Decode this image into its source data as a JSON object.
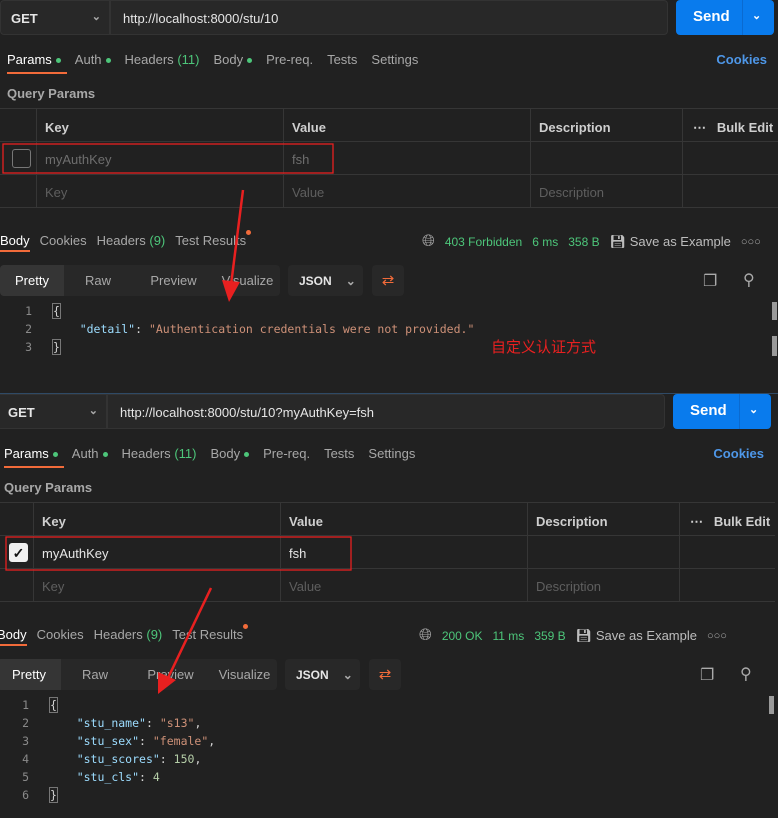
{
  "panels": [
    {
      "method": "GET",
      "url": "http://localhost:8000/stu/10",
      "send": "Send",
      "tabs": [
        {
          "label": "Params",
          "dot": true
        },
        {
          "label": "Auth",
          "dot": true
        },
        {
          "label": "Headers",
          "count": "(11)"
        },
        {
          "label": "Body",
          "dot": true
        },
        {
          "label": "Pre-req."
        },
        {
          "label": "Tests"
        },
        {
          "label": "Settings"
        }
      ],
      "cookies": "Cookies",
      "query_params": "Query Params",
      "columns": {
        "key": "Key",
        "value": "Value",
        "description": "Description",
        "bulk_edit": "Bulk Edit"
      },
      "param": {
        "key": "myAuthKey",
        "value": "fsh",
        "checked": false
      },
      "placeholders": {
        "key": "Key",
        "value": "Value",
        "description": "Description"
      },
      "response_tabs": [
        {
          "label": "Body"
        },
        {
          "label": "Cookies"
        },
        {
          "label": "Headers",
          "count": "(9)"
        },
        {
          "label": "Test Results"
        }
      ],
      "status": {
        "code": "403 Forbidden",
        "time": "6 ms",
        "size": "358 B"
      },
      "save_example": "Save as Example",
      "views": [
        "Pretty",
        "Raw",
        "Preview",
        "Visualize"
      ],
      "format": "JSON",
      "code": [
        [
          {
            "t": "p",
            "v": "{"
          }
        ],
        [
          {
            "t": "p",
            "v": "    "
          },
          {
            "t": "k",
            "v": "\"detail\""
          },
          {
            "t": "p",
            "v": ": "
          },
          {
            "t": "s",
            "v": "\"Authentication credentials were not provided.\""
          }
        ],
        [
          {
            "t": "p",
            "v": "}"
          }
        ]
      ],
      "annotation": "自定义认证方式"
    },
    {
      "method": "GET",
      "url": "http://localhost:8000/stu/10?myAuthKey=fsh",
      "send": "Send",
      "tabs": [
        {
          "label": "Params",
          "dot": true
        },
        {
          "label": "Auth",
          "dot": true
        },
        {
          "label": "Headers",
          "count": "(11)"
        },
        {
          "label": "Body",
          "dot": true
        },
        {
          "label": "Pre-req."
        },
        {
          "label": "Tests"
        },
        {
          "label": "Settings"
        }
      ],
      "cookies": "Cookies",
      "query_params": "Query Params",
      "columns": {
        "key": "Key",
        "value": "Value",
        "description": "Description",
        "bulk_edit": "Bulk Edit"
      },
      "param": {
        "key": "myAuthKey",
        "value": "fsh",
        "checked": true
      },
      "placeholders": {
        "key": "Key",
        "value": "Value",
        "description": "Description"
      },
      "response_tabs": [
        {
          "label": "Body"
        },
        {
          "label": "Cookies"
        },
        {
          "label": "Headers",
          "count": "(9)"
        },
        {
          "label": "Test Results"
        }
      ],
      "status": {
        "code": "200 OK",
        "time": "11 ms",
        "size": "359 B"
      },
      "save_example": "Save as Example",
      "views": [
        "Pretty",
        "Raw",
        "Preview",
        "Visualize"
      ],
      "format": "JSON",
      "code": [
        [
          {
            "t": "p",
            "v": "{"
          }
        ],
        [
          {
            "t": "p",
            "v": "    "
          },
          {
            "t": "k",
            "v": "\"stu_name\""
          },
          {
            "t": "p",
            "v": ": "
          },
          {
            "t": "s",
            "v": "\"s13\""
          },
          {
            "t": "p",
            "v": ","
          }
        ],
        [
          {
            "t": "p",
            "v": "    "
          },
          {
            "t": "k",
            "v": "\"stu_sex\""
          },
          {
            "t": "p",
            "v": ": "
          },
          {
            "t": "s",
            "v": "\"female\""
          },
          {
            "t": "p",
            "v": ","
          }
        ],
        [
          {
            "t": "p",
            "v": "    "
          },
          {
            "t": "k",
            "v": "\"stu_scores\""
          },
          {
            "t": "p",
            "v": ": "
          },
          {
            "t": "n",
            "v": "150"
          },
          {
            "t": "p",
            "v": ","
          }
        ],
        [
          {
            "t": "p",
            "v": "    "
          },
          {
            "t": "k",
            "v": "\"stu_cls\""
          },
          {
            "t": "p",
            "v": ": "
          },
          {
            "t": "n",
            "v": "4"
          }
        ],
        [
          {
            "t": "p",
            "v": "}"
          }
        ]
      ]
    }
  ],
  "colors": {
    "send": "#097bed",
    "accent": "#f26b3a",
    "success": "#4dc67a",
    "annotation": "#e82020"
  }
}
